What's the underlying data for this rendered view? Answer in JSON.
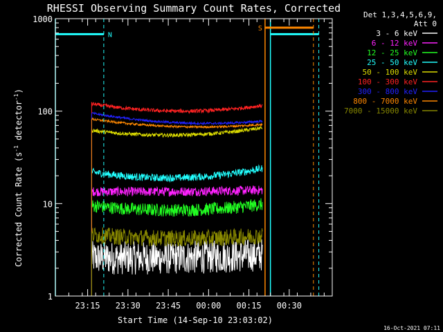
{
  "chart_data": {
    "type": "line",
    "title": "RHESSI Observing Summary Count Rates, Corrected",
    "ylabel_parts": [
      "Corrected Count Rate (s",
      "-1",
      " detector",
      "-1",
      ")"
    ],
    "xlabel": "Start Time (14-Sep-10 23:03:02)",
    "yscale": "log",
    "ylim": [
      1,
      1000
    ],
    "xlim_minutes_after_start": [
      0,
      103
    ],
    "ytick_labels": [
      "1",
      "10",
      "100",
      "1000"
    ],
    "ytick_values": [
      1,
      10,
      100,
      1000
    ],
    "xtick_labels": [
      "23:15",
      "23:30",
      "23:45",
      "00:00",
      "00:15",
      "00:30"
    ],
    "xtick_minutes_after_start": [
      12,
      27,
      42,
      57,
      72,
      87
    ],
    "legend_header": [
      "Det 1,3,4,5,6,9,",
      "Att 0"
    ],
    "legend_placement": "top-right-outside",
    "footer_date": "16-Oct-2021 07:11",
    "series": [
      {
        "name": "3 - 6 keV",
        "color": "#ffffff",
        "t0": 13.5,
        "t1": 77,
        "y_start": 2.6,
        "y_mid": 2.6,
        "y_end": 2.8,
        "noise": 0.18
      },
      {
        "name": "6 - 12 keV",
        "color": "#ff22ff",
        "t0": 13.5,
        "t1": 77,
        "y_start": 13.5,
        "y_mid": 13.5,
        "y_end": 14,
        "noise": 0.05
      },
      {
        "name": "12 - 25 keV",
        "color": "#22ff22",
        "t0": 13.5,
        "t1": 77,
        "y_start": 9.5,
        "y_mid": 8.5,
        "y_end": 9.8,
        "noise": 0.07
      },
      {
        "name": "25 - 50 keV",
        "color": "#22ffff",
        "t0": 13.5,
        "t1": 77,
        "y_start": 22,
        "y_mid": 19,
        "y_end": 24,
        "noise": 0.04
      },
      {
        "name": "50 - 100 keV",
        "color": "#dddd00",
        "t0": 13.5,
        "t1": 77,
        "y_start": 62,
        "y_mid": 55,
        "y_end": 66,
        "noise": 0.02
      },
      {
        "name": "100 - 300 keV",
        "color": "#ff2222",
        "t0": 13.5,
        "t1": 77,
        "y_start": 120,
        "y_mid": 100,
        "y_end": 115,
        "noise": 0.02
      },
      {
        "name": "300 - 800 keV",
        "color": "#2222ff",
        "t0": 13.5,
        "t1": 77,
        "y_start": 95,
        "y_mid": 75,
        "y_end": 78,
        "noise": 0.012
      },
      {
        "name": "800 - 7000 keV",
        "color": "#ff8800",
        "t0": 13.5,
        "t1": 77,
        "y_start": 82,
        "y_mid": 68,
        "y_end": 72,
        "noise": 0.012
      },
      {
        "name": "7000 - 15000 keV",
        "color": "#888800",
        "t0": 13.5,
        "t1": 77,
        "y_start": 4.6,
        "y_mid": 4.2,
        "y_end": 4.5,
        "noise": 0.09
      }
    ],
    "annotations": [
      {
        "label": "N",
        "color": "#22ffff",
        "kind": "night",
        "t0": 0,
        "t1": 18,
        "end_dash": true,
        "y": 680
      },
      {
        "label": "",
        "color": "#22ffff",
        "kind": "night",
        "t0": 80,
        "t1": 98,
        "end_dash": true,
        "y": 680
      },
      {
        "label": "S",
        "color": "#ff8800",
        "kind": "saa",
        "t0": 78,
        "t1": 96,
        "end_dash": true,
        "y": 800
      }
    ]
  }
}
